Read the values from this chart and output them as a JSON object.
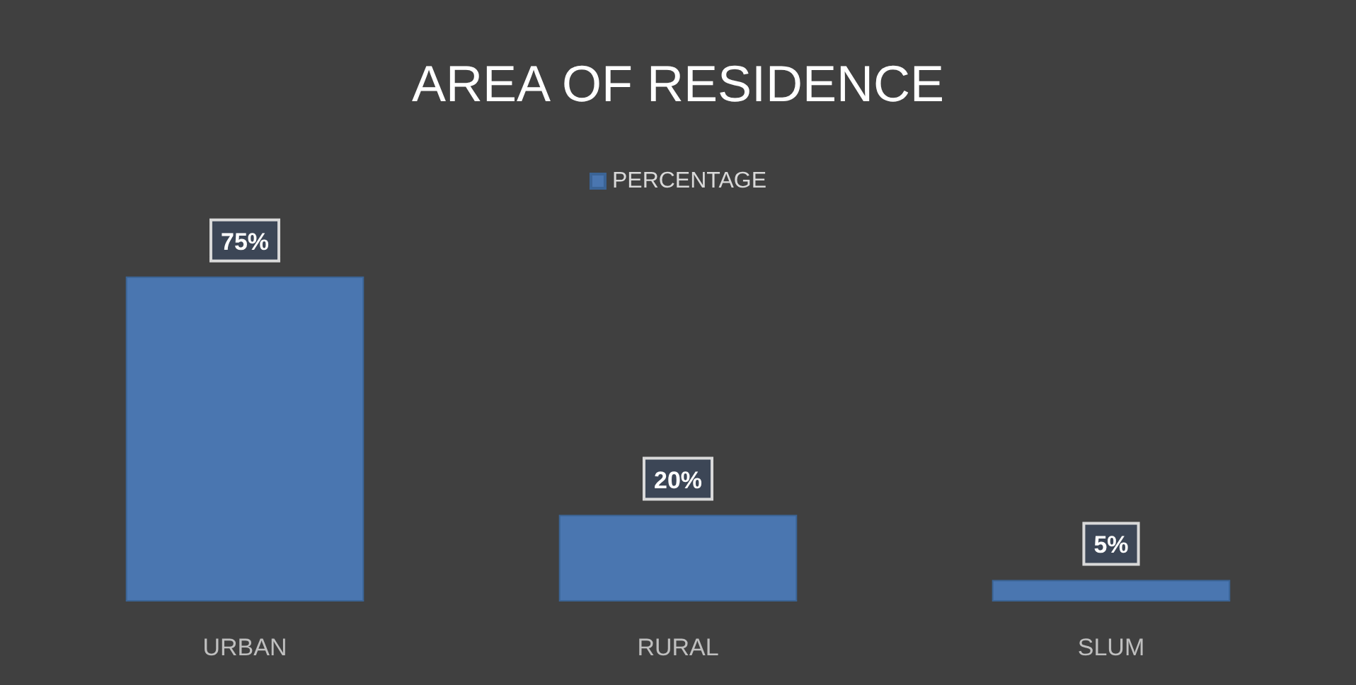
{
  "chart_data": {
    "type": "bar",
    "title": "AREA OF RESIDENCE",
    "categories": [
      "URBAN",
      "RURAL",
      "SLUM"
    ],
    "series": [
      {
        "name": "PERCENTAGE",
        "color": "#4a76b0",
        "values": [
          75,
          20,
          5
        ],
        "value_labels": [
          "75%",
          "20%",
          "5%"
        ]
      }
    ],
    "legend": "top"
  }
}
